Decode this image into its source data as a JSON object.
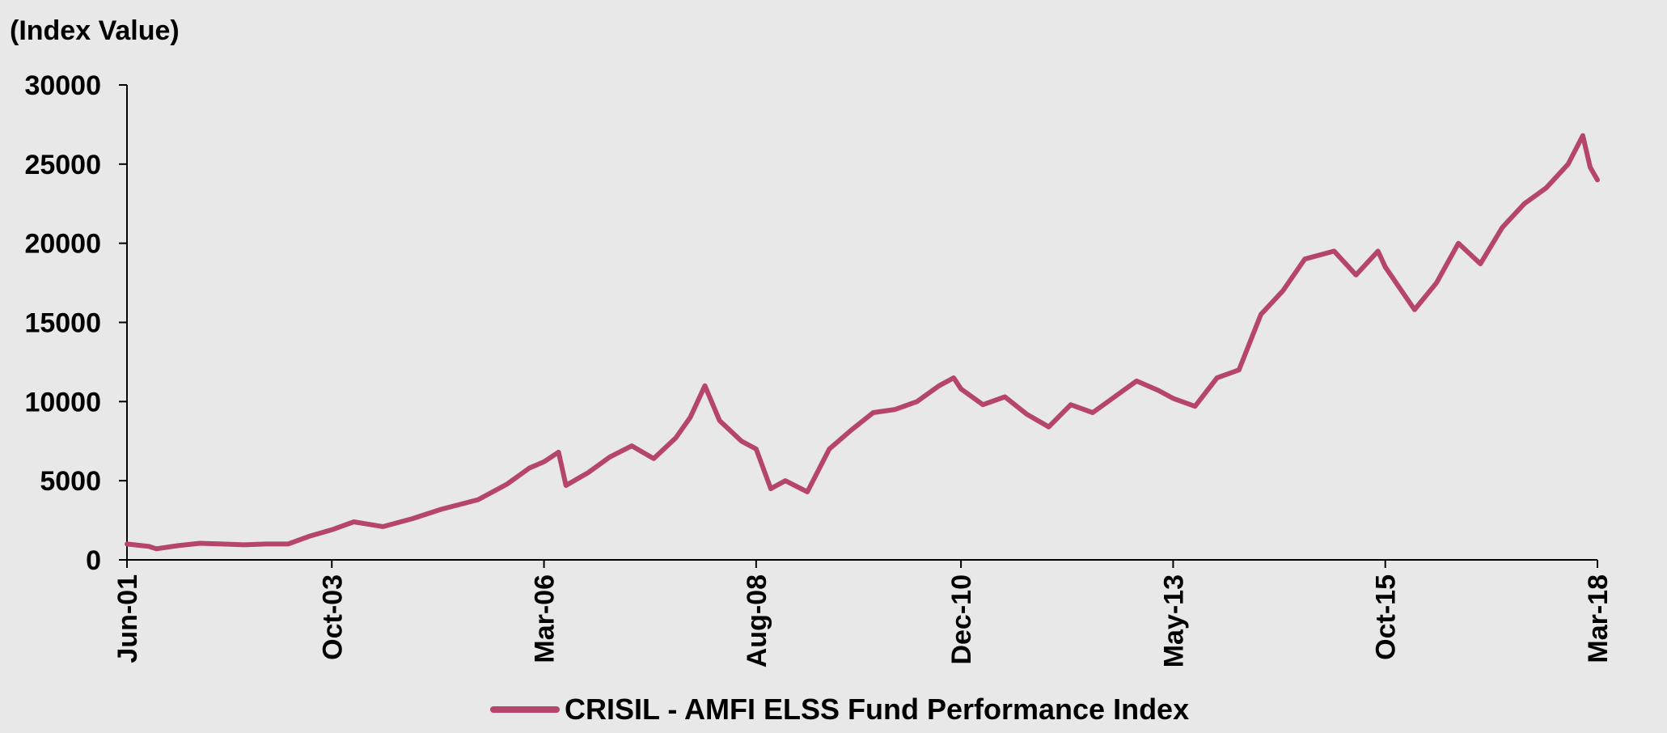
{
  "chart_data": {
    "type": "line",
    "title": "",
    "ylabel": "(Index Value)",
    "xlabel": "",
    "ylim": [
      0,
      30000
    ],
    "yticks": [
      0,
      5000,
      10000,
      15000,
      20000,
      25000,
      30000
    ],
    "ytick_labels": [
      "0",
      "5000",
      "10000",
      "15000",
      "20000",
      "25000",
      "30000"
    ],
    "xticks": [
      "2001-06",
      "2003-10",
      "2006-03",
      "2008-08",
      "2010-12",
      "2013-05",
      "2015-10",
      "2018-03"
    ],
    "xtick_labels": [
      "Jun-01",
      "Oct-03",
      "Mar-06",
      "Aug-08",
      "Dec-10",
      "May-13",
      "Oct-15",
      "Mar-18"
    ],
    "xlim": [
      "2001-06",
      "2018-03"
    ],
    "grid": false,
    "legend_position": "bottom-center",
    "series": [
      {
        "name": "CRISIL - AMFI ELSS Fund Performance Index",
        "color": "#b5456b",
        "x": [
          "2001-06",
          "2001-09",
          "2001-10",
          "2002-01",
          "2002-04",
          "2002-07",
          "2002-10",
          "2003-01",
          "2003-04",
          "2003-07",
          "2003-10",
          "2004-01",
          "2004-05",
          "2004-09",
          "2005-01",
          "2005-06",
          "2005-10",
          "2006-01",
          "2006-03",
          "2006-05",
          "2006-06",
          "2006-09",
          "2006-12",
          "2007-03",
          "2007-06",
          "2007-09",
          "2007-11",
          "2008-01",
          "2008-03",
          "2008-06",
          "2008-08",
          "2008-10",
          "2008-12",
          "2009-03",
          "2009-06",
          "2009-09",
          "2009-12",
          "2010-03",
          "2010-06",
          "2010-09",
          "2010-11",
          "2010-12",
          "2011-03",
          "2011-06",
          "2011-09",
          "2011-12",
          "2012-03",
          "2012-06",
          "2012-09",
          "2012-12",
          "2013-03",
          "2013-05",
          "2013-08",
          "2013-11",
          "2014-02",
          "2014-05",
          "2014-08",
          "2014-11",
          "2015-03",
          "2015-06",
          "2015-09",
          "2015-10",
          "2016-02",
          "2016-05",
          "2016-08",
          "2016-11",
          "2017-02",
          "2017-05",
          "2017-08",
          "2017-11",
          "2018-01",
          "2018-02",
          "2018-03"
        ],
        "values": [
          1000,
          850,
          700,
          900,
          1050,
          1000,
          950,
          1000,
          1000,
          1500,
          1900,
          2400,
          2100,
          2600,
          3200,
          3800,
          4800,
          5800,
          6200,
          6800,
          4700,
          5500,
          6500,
          7200,
          6400,
          7700,
          9000,
          11000,
          8800,
          7500,
          7000,
          4500,
          5000,
          4300,
          7000,
          8200,
          9300,
          9500,
          10000,
          11000,
          11500,
          10800,
          9800,
          10300,
          9200,
          8400,
          9800,
          9300,
          10300,
          11300,
          10700,
          10200,
          9700,
          11500,
          12000,
          15500,
          17000,
          19000,
          19500,
          18000,
          19500,
          18500,
          15800,
          17500,
          20000,
          18700,
          21000,
          22500,
          23500,
          25000,
          26800,
          24800,
          24000
        ]
      }
    ]
  }
}
